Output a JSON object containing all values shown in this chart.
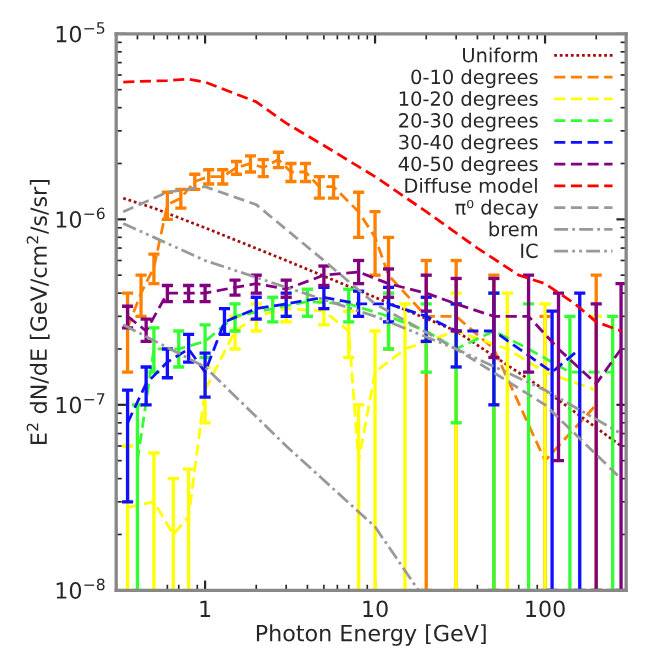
{
  "chart_data": {
    "type": "line",
    "xlabel": "Photon Energy [GeV]",
    "ylabel": "E$^{2}$ dN/dE [GeV/cm$^{2}$/s/sr]",
    "log": "xy",
    "xlim": [
      0.3,
      300
    ],
    "ylim": [
      1e-08,
      1e-05
    ],
    "xticks": [
      1,
      10,
      100
    ],
    "yticks": [
      {
        "value": 1e-08,
        "label": "10$^{−8}$"
      },
      {
        "value": 1e-07,
        "label": "10$^{−7}$"
      },
      {
        "value": 1e-06,
        "label": "10$^{−6}$"
      },
      {
        "value": 1e-05,
        "label": "10$^{−5}$"
      }
    ],
    "legend": "top right",
    "marker": "none",
    "grid": false,
    "series": [
      {
        "name": "Uniform",
        "color": "#a01010",
        "line_style": "dotted",
        "x": [
          0.33,
          0.5,
          1,
          3,
          10,
          30,
          100,
          280
        ],
        "values": [
          1.3e-06,
          1.15e-06,
          9e-07,
          6e-07,
          3.8e-07,
          2.5e-07,
          1.2e-07,
          6e-08
        ]
      },
      {
        "name": "0-10 degrees",
        "color": "#ff8000",
        "line_style": "dashed",
        "x": [
          0.35,
          0.42,
          0.5,
          0.6,
          0.72,
          0.87,
          1.05,
          1.27,
          1.53,
          1.85,
          2.2,
          2.7,
          3.2,
          3.9,
          4.7,
          5.7,
          8,
          10,
          12,
          20,
          30,
          50,
          100,
          200
        ],
        "values": [
          2.6e-07,
          4e-07,
          5.5e-07,
          1.2e-06,
          1.3e-06,
          1.6e-06,
          1.7e-06,
          1.7e-06,
          1.9e-06,
          2e-06,
          1.9e-06,
          2.1e-06,
          1.8e-06,
          1.8e-06,
          1.5e-06,
          1.5e-06,
          1.1e-06,
          8e-07,
          5e-07,
          3e-07,
          3e-07,
          2e-07,
          5e-08,
          1e-07
        ],
        "errors": [
          [
            1.5e-07,
            4e-07
          ],
          [
            3e-07,
            5e-07
          ],
          [
            4.5e-07,
            6.5e-07
          ],
          [
            1e-06,
            1.4e-06
          ],
          [
            1.15e-06,
            1.45e-06
          ],
          [
            1.45e-06,
            1.75e-06
          ],
          [
            1.55e-06,
            1.85e-06
          ],
          [
            1.55e-06,
            1.85e-06
          ],
          [
            1.75e-06,
            2.05e-06
          ],
          [
            1.8e-06,
            2.2e-06
          ],
          [
            1.7e-06,
            2.1e-06
          ],
          [
            1.9e-06,
            2.3e-06
          ],
          [
            1.6e-06,
            2e-06
          ],
          [
            1.6e-06,
            2e-06
          ],
          [
            1.3e-06,
            1.7e-06
          ],
          [
            1.3e-06,
            1.7e-06
          ],
          [
            8e-07,
            1.4e-06
          ],
          [
            5e-07,
            1.1e-06
          ],
          [
            2e-07,
            8e-07
          ],
          [
            1e-08,
            6e-07
          ],
          [
            1e-08,
            6e-07
          ],
          [
            1e-08,
            5e-07
          ],
          [
            1e-08,
            3e-07
          ],
          [
            1e-08,
            5e-07
          ]
        ]
      },
      {
        "name": "10-20 degrees",
        "color": "#ffff00",
        "line_style": "dashed",
        "x": [
          0.35,
          0.5,
          0.65,
          0.8,
          1,
          1.5,
          2,
          3,
          5,
          7,
          8,
          10,
          15,
          30,
          60,
          100,
          200
        ],
        "values": [
          2.8e-08,
          3e-08,
          2e-08,
          2.5e-08,
          1.2e-07,
          2.5e-07,
          3e-07,
          3.3e-07,
          3.2e-07,
          2.5e-07,
          5e-08,
          1.5e-07,
          2e-07,
          2.5e-07,
          2e-07,
          1.5e-07,
          1.2e-07
        ],
        "errors": [
          [
            1e-08,
            6e-08
          ],
          [
            1e-08,
            5.5e-08
          ],
          [
            1e-08,
            4e-08
          ],
          [
            1e-08,
            4.5e-08
          ],
          [
            8e-08,
            1.6e-07
          ],
          [
            2e-07,
            3e-07
          ],
          [
            2.5e-07,
            3.5e-07
          ],
          [
            2.8e-07,
            3.8e-07
          ],
          [
            2.7e-07,
            3.7e-07
          ],
          [
            1.8e-07,
            3.2e-07
          ],
          [
            1e-08,
            1e-07
          ],
          [
            1e-08,
            2.5e-07
          ],
          [
            1e-08,
            3.5e-07
          ],
          [
            1e-08,
            4e-07
          ],
          [
            1e-08,
            4e-07
          ],
          [
            1e-08,
            3.5e-07
          ],
          [
            1e-08,
            3e-07
          ]
        ]
      },
      {
        "name": "20-30 degrees",
        "color": "#33ff33",
        "line_style": "dashed",
        "x": [
          0.4,
          0.5,
          0.7,
          1,
          1.5,
          2.5,
          4,
          7,
          12,
          20,
          30,
          50,
          80,
          140,
          250
        ],
        "values": [
          5e-08,
          2e-07,
          2e-07,
          2.2e-07,
          3e-07,
          3.3e-07,
          3.6e-07,
          3.5e-07,
          3e-07,
          2.5e-07,
          2e-07,
          2.5e-07,
          2e-07,
          1.5e-07,
          1.5e-07
        ],
        "errors": [
          [
            1e-08,
            1e-07
          ],
          [
            1.5e-07,
            2.6e-07
          ],
          [
            1.6e-07,
            2.5e-07
          ],
          [
            1.8e-07,
            2.7e-07
          ],
          [
            2.5e-07,
            3.5e-07
          ],
          [
            2.8e-07,
            3.8e-07
          ],
          [
            3e-07,
            4.2e-07
          ],
          [
            2.8e-07,
            4.2e-07
          ],
          [
            2e-07,
            4e-07
          ],
          [
            1.5e-07,
            3.5e-07
          ],
          [
            8e-08,
            3.5e-07
          ],
          [
            1e-08,
            4e-07
          ],
          [
            1e-08,
            3.5e-07
          ],
          [
            1e-08,
            3e-07
          ],
          [
            1e-08,
            3e-07
          ]
        ]
      },
      {
        "name": "30-40 degrees",
        "color": "#1010ff",
        "line_style": "dashed",
        "x": [
          0.35,
          0.45,
          0.6,
          0.8,
          1,
          1.3,
          2,
          3,
          5,
          8,
          12,
          20,
          30,
          50,
          110,
          160
        ],
        "values": [
          8e-08,
          1.3e-07,
          1.7e-07,
          2e-07,
          1.5e-07,
          2.8e-07,
          3.3e-07,
          3.5e-07,
          3.8e-07,
          3.5e-07,
          3.5e-07,
          3e-07,
          2.5e-07,
          2.5e-07,
          1.5e-07,
          2e-07
        ],
        "errors": [
          [
            3e-08,
            1.2e-07
          ],
          [
            1e-07,
            1.6e-07
          ],
          [
            1.4e-07,
            2e-07
          ],
          [
            1.7e-07,
            2.4e-07
          ],
          [
            1.1e-07,
            1.9e-07
          ],
          [
            2.4e-07,
            3.3e-07
          ],
          [
            2.9e-07,
            3.8e-07
          ],
          [
            3e-07,
            4e-07
          ],
          [
            3.3e-07,
            4.3e-07
          ],
          [
            3e-07,
            4.1e-07
          ],
          [
            2.8e-07,
            4.3e-07
          ],
          [
            2.2e-07,
            3.8e-07
          ],
          [
            1.6e-07,
            3.5e-07
          ],
          [
            1e-07,
            4e-07
          ],
          [
            1e-08,
            3.2e-07
          ],
          [
            1e-08,
            4e-07
          ]
        ]
      },
      {
        "name": "40-50 degrees",
        "color": "#800080",
        "line_style": "dashed",
        "x": [
          0.35,
          0.45,
          0.6,
          0.8,
          1,
          1.5,
          2,
          3,
          5,
          8,
          12,
          20,
          30,
          50,
          80,
          120,
          200,
          280
        ],
        "values": [
          3e-07,
          2.5e-07,
          4e-07,
          4e-07,
          4e-07,
          4.3e-07,
          4.5e-07,
          4.2e-07,
          5e-07,
          5.2e-07,
          4.5e-07,
          4e-07,
          3.5e-07,
          3e-07,
          3e-07,
          2e-07,
          1.3e-07,
          2e-07
        ],
        "errors": [
          [
            2.6e-07,
            3.4e-07
          ],
          [
            2.2e-07,
            2.9e-07
          ],
          [
            3.6e-07,
            4.4e-07
          ],
          [
            3.6e-07,
            4.4e-07
          ],
          [
            3.6e-07,
            4.4e-07
          ],
          [
            3.9e-07,
            4.7e-07
          ],
          [
            4e-07,
            5e-07
          ],
          [
            3.8e-07,
            4.7e-07
          ],
          [
            4.4e-07,
            5.6e-07
          ],
          [
            4.5e-07,
            6e-07
          ],
          [
            3.8e-07,
            5.4e-07
          ],
          [
            3.2e-07,
            5e-07
          ],
          [
            2.5e-07,
            4.8e-07
          ],
          [
            1.8e-07,
            4.8e-07
          ],
          [
            1.5e-07,
            5e-07
          ],
          [
            5e-08,
            4e-07
          ],
          [
            1e-08,
            3.5e-07
          ],
          [
            1e-08,
            4.5e-07
          ]
        ]
      },
      {
        "name": "Diffuse model",
        "color": "#ff0000",
        "line_style": "dashed",
        "x": [
          0.33,
          0.6,
          0.8,
          1,
          2,
          3,
          5,
          10,
          20,
          40,
          70,
          100,
          150,
          200,
          280
        ],
        "values": [
          5.5e-06,
          5.6e-06,
          5.7e-06,
          5.5e-06,
          4.3e-06,
          3.3e-06,
          2.5e-06,
          1.7e-06,
          1.1e-06,
          7e-07,
          5e-07,
          4.5e-07,
          3.5e-07,
          2.8e-07,
          2.5e-07
        ]
      },
      {
        "name": "π⁰ decay",
        "color": "#999999",
        "line_style": "dashed",
        "x": [
          0.33,
          0.6,
          1,
          2,
          5,
          10,
          30,
          100,
          280
        ],
        "values": [
          1.1e-06,
          1.4e-06,
          1.5e-06,
          1.2e-06,
          6e-07,
          3.5e-07,
          2e-07,
          1e-07,
          4e-08
        ]
      },
      {
        "name": "brem",
        "color": "#999999",
        "line_style": "dashdot",
        "x": [
          0.33,
          1,
          3,
          10,
          18
        ],
        "values": [
          2.7e-07,
          1.6e-07,
          6e-08,
          2.2e-08,
          1e-08
        ]
      },
      {
        "name": "IC",
        "color": "#999999",
        "line_style": "dashdotdot",
        "x": [
          0.33,
          1,
          3,
          10,
          30,
          100,
          280
        ],
        "values": [
          9.5e-07,
          6e-07,
          4.3e-07,
          3e-07,
          2e-07,
          1.2e-07,
          7e-08
        ]
      }
    ]
  }
}
